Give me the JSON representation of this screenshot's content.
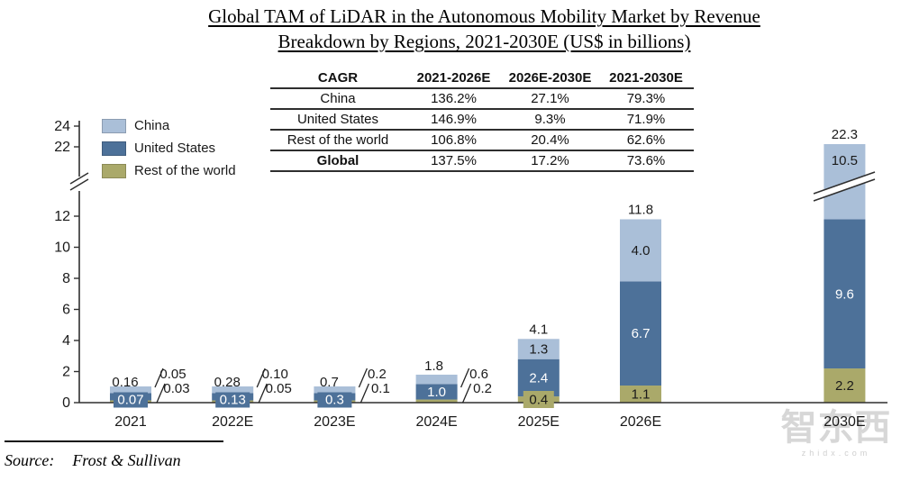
{
  "title": {
    "line1": "Global TAM of LiDAR in the Autonomous Mobility Market by Revenue",
    "line2": "Breakdown by Regions, 2021-2030E (US$ in billions)"
  },
  "cagr_table": {
    "headers": [
      "CAGR",
      "2021-2026E",
      "2026E-2030E",
      "2021-2030E"
    ],
    "rows": [
      {
        "label": "China",
        "values": [
          "136.2%",
          "27.1%",
          "79.3%"
        ],
        "bold": false
      },
      {
        "label": "United States",
        "values": [
          "146.9%",
          "9.3%",
          "71.9%"
        ],
        "bold": false
      },
      {
        "label": "Rest of the world",
        "values": [
          "106.8%",
          "20.4%",
          "62.6%"
        ],
        "bold": false
      },
      {
        "label": "Global",
        "values": [
          "137.5%",
          "17.2%",
          "73.6%"
        ],
        "bold": true
      }
    ]
  },
  "legend": {
    "items": [
      {
        "label": "China",
        "color": "#aabfd8"
      },
      {
        "label": "United States",
        "color": "#4d7199"
      },
      {
        "label": "Rest of the world",
        "color": "#aaa96a"
      }
    ]
  },
  "colors": {
    "china": "#aabfd8",
    "us": "#4d7199",
    "row": "#aaa96a",
    "axis": "#2f2f2f",
    "text": "#1a1a1a",
    "watermark": "#d7d7d7"
  },
  "chart_data": {
    "type": "bar",
    "stacked": true,
    "axis_break": true,
    "title": "Global TAM of LiDAR in the Autonomous Mobility Market by Revenue Breakdown by Regions, 2021-2030E (US$ in billions)",
    "categories": [
      "2021",
      "2022E",
      "2023E",
      "2024E",
      "2025E",
      "2026E",
      "2030E"
    ],
    "series": [
      {
        "name": "Rest of the world",
        "key": "row",
        "color": "#aaa96a",
        "values": [
          0.03,
          0.05,
          0.1,
          0.2,
          0.4,
          1.1,
          2.2
        ],
        "labels": [
          "0.03",
          "0.05",
          "0.1",
          "0.2",
          "0.4",
          "1.1",
          "2.2"
        ]
      },
      {
        "name": "United States",
        "key": "us",
        "color": "#4d7199",
        "values": [
          0.07,
          0.13,
          0.3,
          1.0,
          2.4,
          6.7,
          9.6
        ],
        "labels": [
          "0.07",
          "0.13",
          "0.3",
          "1.0",
          "2.4",
          "6.7",
          "9.6"
        ]
      },
      {
        "name": "China",
        "key": "china",
        "color": "#aabfd8",
        "values": [
          0.05,
          0.1,
          0.2,
          0.6,
          1.3,
          4.0,
          10.5
        ],
        "labels": [
          "0.05",
          "0.10",
          "0.2",
          "0.6",
          "1.3",
          "4.0",
          "10.5"
        ]
      }
    ],
    "totals": [
      0.16,
      0.28,
      0.7,
      1.8,
      4.1,
      11.8,
      22.3
    ],
    "totals_labels": [
      "0.16",
      "0.28",
      "0.7",
      "1.8",
      "4.1",
      "11.8",
      "22.3"
    ],
    "y_ticks_lower": [
      0,
      2,
      4,
      6,
      8,
      10,
      12
    ],
    "y_ticks_upper": [
      22,
      24
    ],
    "ylim_lower": [
      0,
      13
    ],
    "ylim_upper": [
      21,
      24
    ],
    "grid": false,
    "legend_position": "top-left",
    "label_placement": [
      {
        "china": "callout",
        "us": "badge",
        "row": "callout"
      },
      {
        "china": "callout",
        "us": "badge",
        "row": "callout"
      },
      {
        "china": "callout",
        "us": "badge",
        "row": "callout"
      },
      {
        "china": "callout",
        "us": "inside",
        "row": "callout"
      },
      {
        "china": "inside",
        "us": "inside",
        "row": "badge"
      },
      {
        "china": "inside",
        "us": "inside",
        "row": "inside"
      },
      {
        "china": "inside",
        "us": "inside",
        "row": "inside"
      }
    ]
  },
  "source": {
    "prefix": "Source:",
    "text": "Frost & Sullivan"
  },
  "watermark": {
    "text": "智东西",
    "subtext": "zhidx.com"
  }
}
